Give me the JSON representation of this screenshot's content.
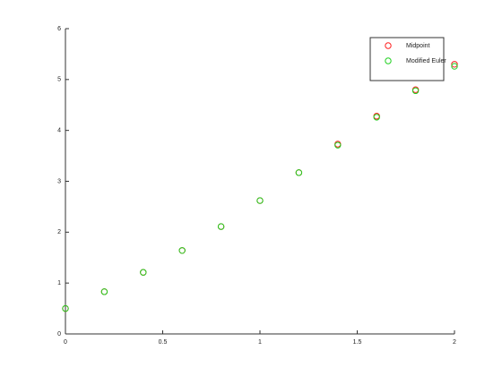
{
  "chart_data": {
    "type": "scatter",
    "x": [
      0,
      0.2,
      0.4,
      0.6,
      0.8,
      1.0,
      1.2,
      1.4,
      1.6,
      1.8,
      2.0
    ],
    "series": [
      {
        "name": "Midpoint",
        "color": "#ff2020",
        "values": [
          0.5,
          0.83,
          1.21,
          1.64,
          2.11,
          2.62,
          3.17,
          3.73,
          4.28,
          4.8,
          5.3
        ]
      },
      {
        "name": "Modified Euler",
        "color": "#20d020",
        "values": [
          0.5,
          0.83,
          1.21,
          1.64,
          2.11,
          2.62,
          3.17,
          3.71,
          4.26,
          4.78,
          5.26
        ]
      }
    ],
    "xlim": [
      0,
      2
    ],
    "xticks": [
      0,
      0.5,
      1,
      1.5,
      2
    ],
    "ylim": [
      0,
      6
    ],
    "yticks": [
      0,
      1,
      2,
      3,
      4,
      5,
      6
    ],
    "legend": "northeast"
  }
}
